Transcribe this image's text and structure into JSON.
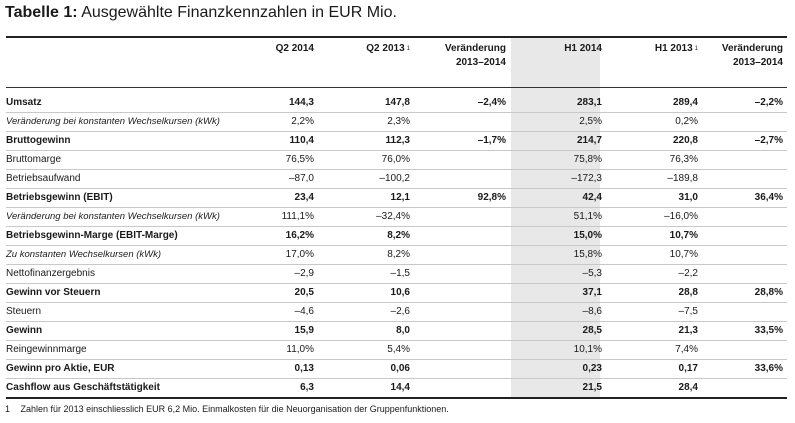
{
  "title": {
    "prefix": "Tabelle 1:",
    "text": "Ausgewählte Finanzkennzahlen in EUR Mio."
  },
  "columns": [
    {
      "label": "Q2 2014",
      "line2": "",
      "fn": ""
    },
    {
      "label": "Q2 2013",
      "line2": "",
      "fn": "1"
    },
    {
      "label": "Veränderung",
      "line2": "2013–2014",
      "fn": ""
    },
    {
      "label": "H1 2014",
      "line2": "",
      "fn": ""
    },
    {
      "label": "H1 2013",
      "line2": "",
      "fn": "1"
    },
    {
      "label": "Veränderung",
      "line2": "2013–2014",
      "fn": ""
    }
  ],
  "rows": [
    {
      "label": "Umsatz",
      "style": "bold",
      "values": [
        "144,3",
        "147,8",
        "–2,4%",
        "283,1",
        "289,4",
        "–2,2%"
      ]
    },
    {
      "label": "Veränderung bei konstanten Wechselkursen (kWk)",
      "style": "italic",
      "values": [
        "2,2%",
        "2,3%",
        "",
        "2,5%",
        "0,2%",
        ""
      ]
    },
    {
      "label": "Bruttogewinn",
      "style": "bold",
      "values": [
        "110,4",
        "112,3",
        "–1,7%",
        "214,7",
        "220,8",
        "–2,7%"
      ]
    },
    {
      "label": "Bruttomarge",
      "style": "normal",
      "values": [
        "76,5%",
        "76,0%",
        "",
        "75,8%",
        "76,3%",
        ""
      ]
    },
    {
      "label": "Betriebsaufwand",
      "style": "normal",
      "values": [
        "–87,0",
        "–100,2",
        "",
        "–172,3",
        "–189,8",
        ""
      ]
    },
    {
      "label": "Betriebsgewinn (EBIT)",
      "style": "bold",
      "values": [
        "23,4",
        "12,1",
        "92,8%",
        "42,4",
        "31,0",
        "36,4%"
      ]
    },
    {
      "label": "Veränderung bei konstanten Wechselkursen (kWk)",
      "style": "italic",
      "values": [
        "111,1%",
        "–32,4%",
        "",
        "51,1%",
        "–16,0%",
        ""
      ]
    },
    {
      "label": "Betriebsgewinn-Marge (EBIT-Marge)",
      "style": "bold",
      "values": [
        "16,2%",
        "8,2%",
        "",
        "15,0%",
        "10,7%",
        ""
      ]
    },
    {
      "label": "Zu konstanten Wechselkursen (kWk)",
      "style": "italic",
      "values": [
        "17,0%",
        "8,2%",
        "",
        "15,8%",
        "10,7%",
        ""
      ]
    },
    {
      "label": "Nettofinanzergebnis",
      "style": "normal",
      "values": [
        "–2,9",
        "–1,5",
        "",
        "–5,3",
        "–2,2",
        ""
      ]
    },
    {
      "label": "Gewinn vor Steuern",
      "style": "bold",
      "values": [
        "20,5",
        "10,6",
        "",
        "37,1",
        "28,8",
        "28,8%"
      ]
    },
    {
      "label": "Steuern",
      "style": "normal",
      "values": [
        "–4,6",
        "–2,6",
        "",
        "–8,6",
        "–7,5",
        ""
      ]
    },
    {
      "label": "Gewinn",
      "style": "bold",
      "values": [
        "15,9",
        "8,0",
        "",
        "28,5",
        "21,3",
        "33,5%"
      ]
    },
    {
      "label": "Reingewinnmarge",
      "style": "normal",
      "values": [
        "11,0%",
        "5,4%",
        "",
        "10,1%",
        "7,4%",
        ""
      ]
    },
    {
      "label": "Gewinn pro Aktie, EUR",
      "style": "bold",
      "values": [
        "0,13",
        "0,06",
        "",
        "0,23",
        "0,17",
        "33,6%"
      ]
    },
    {
      "label": "Cashflow aus Geschäftstätigkeit",
      "style": "bold",
      "values": [
        "6,3",
        "14,4",
        "",
        "21,5",
        "28,4",
        ""
      ]
    }
  ],
  "footnote": {
    "number": "1",
    "text": "Zahlen für 2013 einschliesslich EUR 6,2 Mio. Einmalkosten für die Neuorganisation der Gruppenfunktionen."
  }
}
